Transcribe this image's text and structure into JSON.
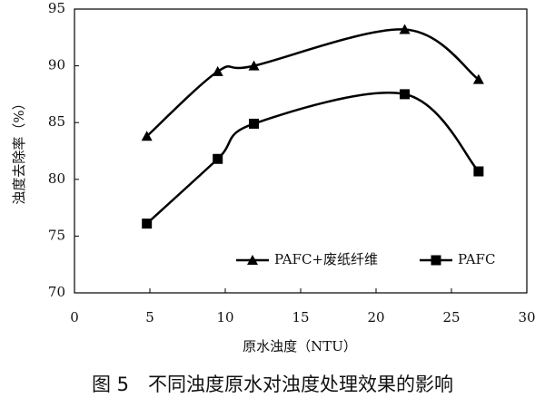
{
  "chart_data": {
    "type": "line",
    "xlabel": "原水浊度（NTU）",
    "ylabel": "浊度去除率（%）",
    "caption": "图 5　不同浊度原水对浊度处理效果的影响",
    "x": [
      4.8,
      9.5,
      11.9,
      21.9,
      26.8
    ],
    "series": [
      {
        "name": "PAFC+废纸纤维",
        "color": "#000000",
        "marker": "triangle",
        "values": [
          83.8,
          89.5,
          90.0,
          93.2,
          88.8
        ]
      },
      {
        "name": "PAFC",
        "color": "#000000",
        "marker": "square",
        "values": [
          76.1,
          81.8,
          84.9,
          87.5,
          80.7
        ]
      }
    ],
    "xlim": [
      0,
      30
    ],
    "xticks": [
      0,
      5,
      10,
      15,
      20,
      25,
      30
    ],
    "ylim": [
      70,
      95
    ],
    "yticks": [
      70,
      75,
      80,
      85,
      90,
      95
    ],
    "grid": false,
    "smooth": true
  }
}
